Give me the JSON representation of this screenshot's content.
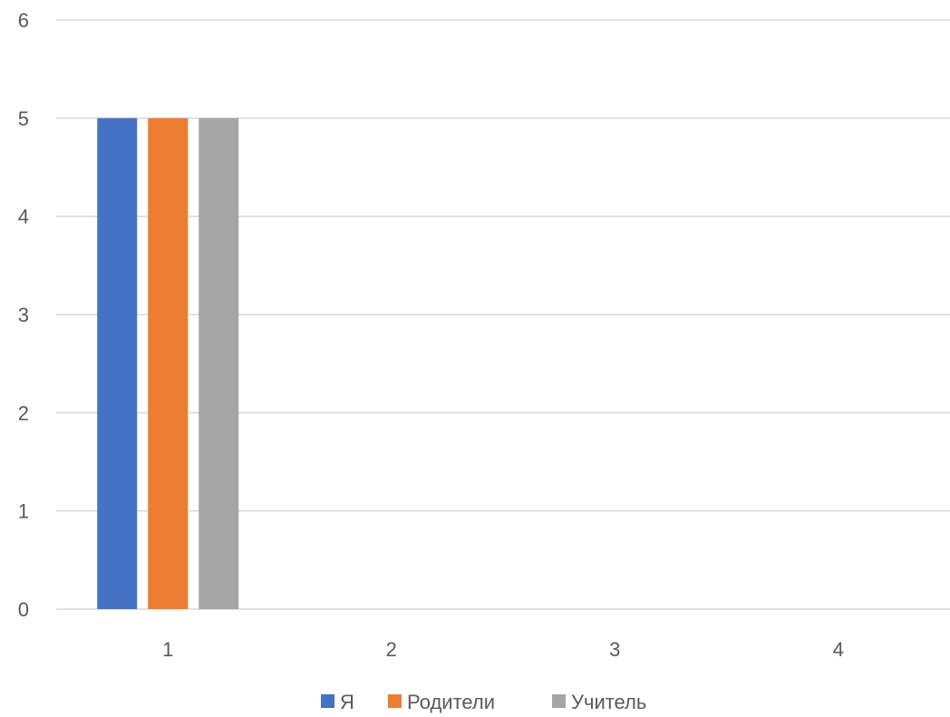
{
  "chart_data": {
    "type": "bar",
    "categories": [
      "1",
      "2",
      "3",
      "4"
    ],
    "series": [
      {
        "name": "Я",
        "color": "#4472c4",
        "values": [
          5,
          0,
          0,
          0
        ]
      },
      {
        "name": "Родители",
        "color": "#ed7d31",
        "values": [
          5,
          0,
          0,
          0
        ]
      },
      {
        "name": "Учитель",
        "color": "#a5a5a5",
        "values": [
          5,
          0,
          0,
          0
        ]
      }
    ],
    "y_ticks": [
      "0",
      "1",
      "2",
      "3",
      "4",
      "5",
      "6"
    ],
    "ylim": [
      0,
      6
    ],
    "grid": true,
    "legend_position": "bottom",
    "title": "",
    "xlabel": "",
    "ylabel": ""
  }
}
